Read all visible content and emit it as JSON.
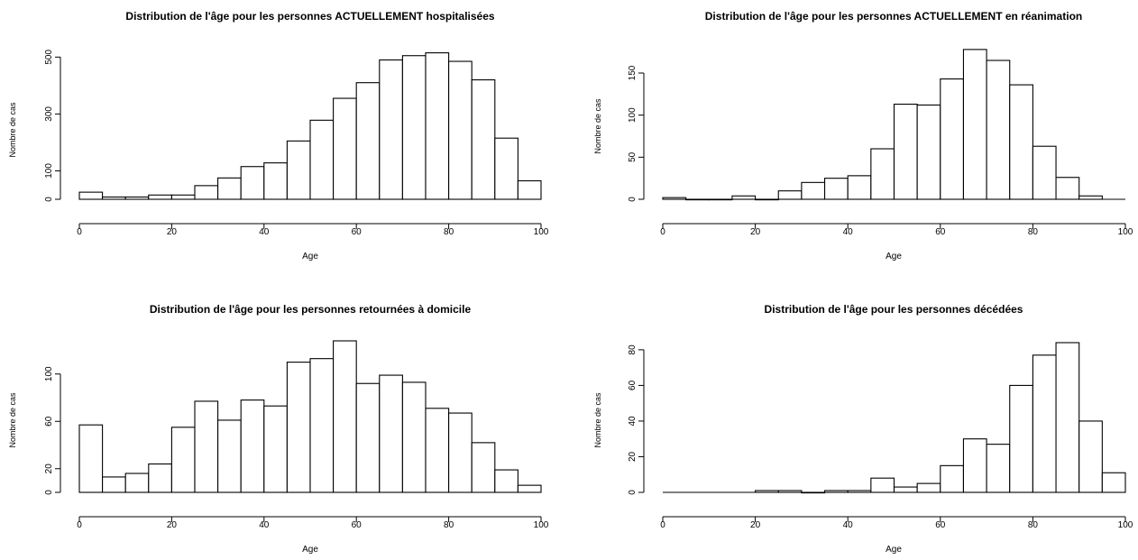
{
  "chart_data": [
    {
      "type": "bar",
      "title": "Distribution de l'âge pour les personnes ACTUELLEMENT hospitalisées",
      "xlabel": "Age",
      "ylabel": "Nombre de cas",
      "xlim": [
        0,
        100
      ],
      "ylim": [
        0,
        520
      ],
      "x_ticks": [
        "0",
        "20",
        "40",
        "60",
        "80",
        "100"
      ],
      "y_ticks": [
        "0",
        "100",
        "300",
        "500"
      ],
      "bin_width": 5,
      "bins": [
        0,
        5,
        10,
        15,
        20,
        25,
        30,
        35,
        40,
        45,
        50,
        55,
        60,
        65,
        70,
        75,
        80,
        85,
        90,
        95
      ],
      "values": [
        25,
        8,
        8,
        15,
        15,
        48,
        75,
        115,
        128,
        205,
        278,
        355,
        410,
        490,
        505,
        515,
        485,
        420,
        215,
        65
      ]
    },
    {
      "type": "bar",
      "title": "Distribution de l'âge pour les personnes ACTUELLEMENT en réanimation",
      "xlabel": "Age",
      "ylabel": "Nombre de cas",
      "xlim": [
        0,
        100
      ],
      "ylim": [
        0,
        180
      ],
      "x_ticks": [
        "0",
        "20",
        "40",
        "60",
        "80",
        "100"
      ],
      "y_ticks": [
        "0",
        "50",
        "100",
        "150"
      ],
      "bin_width": 5,
      "bins": [
        0,
        5,
        10,
        15,
        20,
        25,
        30,
        35,
        40,
        45,
        50,
        55,
        60,
        65,
        70,
        75,
        80,
        85,
        90
      ],
      "values": [
        2,
        0,
        0,
        4,
        0,
        10,
        20,
        25,
        28,
        60,
        113,
        112,
        143,
        178,
        165,
        136,
        63,
        26,
        4
      ]
    },
    {
      "type": "bar",
      "title": "Distribution de l'âge pour les personnes retournées à domicile",
      "xlabel": "Age",
      "ylabel": "Nombre de cas",
      "xlim": [
        0,
        100
      ],
      "ylim": [
        0,
        128
      ],
      "x_ticks": [
        "0",
        "20",
        "40",
        "60",
        "80",
        "100"
      ],
      "y_ticks": [
        "0",
        "20",
        "60",
        "100"
      ],
      "bin_width": 5,
      "bins": [
        0,
        5,
        10,
        15,
        20,
        25,
        30,
        35,
        40,
        45,
        50,
        55,
        60,
        65,
        70,
        75,
        80,
        85,
        90,
        95
      ],
      "values": [
        57,
        13,
        16,
        24,
        55,
        77,
        61,
        78,
        73,
        110,
        113,
        128,
        92,
        99,
        93,
        71,
        67,
        42,
        19,
        6
      ]
    },
    {
      "type": "bar",
      "title": "Distribution de l'âge pour les personnes décédées",
      "xlabel": "Age",
      "ylabel": "Nombre de cas",
      "xlim": [
        0,
        100
      ],
      "ylim": [
        0,
        85
      ],
      "x_ticks": [
        "0",
        "20",
        "40",
        "60",
        "80",
        "100"
      ],
      "y_ticks": [
        "0",
        "20",
        "40",
        "60",
        "80"
      ],
      "bin_width": 5,
      "bins": [
        20,
        25,
        30,
        35,
        40,
        45,
        50,
        55,
        60,
        65,
        70,
        75,
        80,
        85,
        90,
        95
      ],
      "values": [
        1,
        1,
        0,
        1,
        1,
        8,
        3,
        5,
        15,
        30,
        27,
        60,
        77,
        84,
        40,
        11
      ]
    }
  ]
}
